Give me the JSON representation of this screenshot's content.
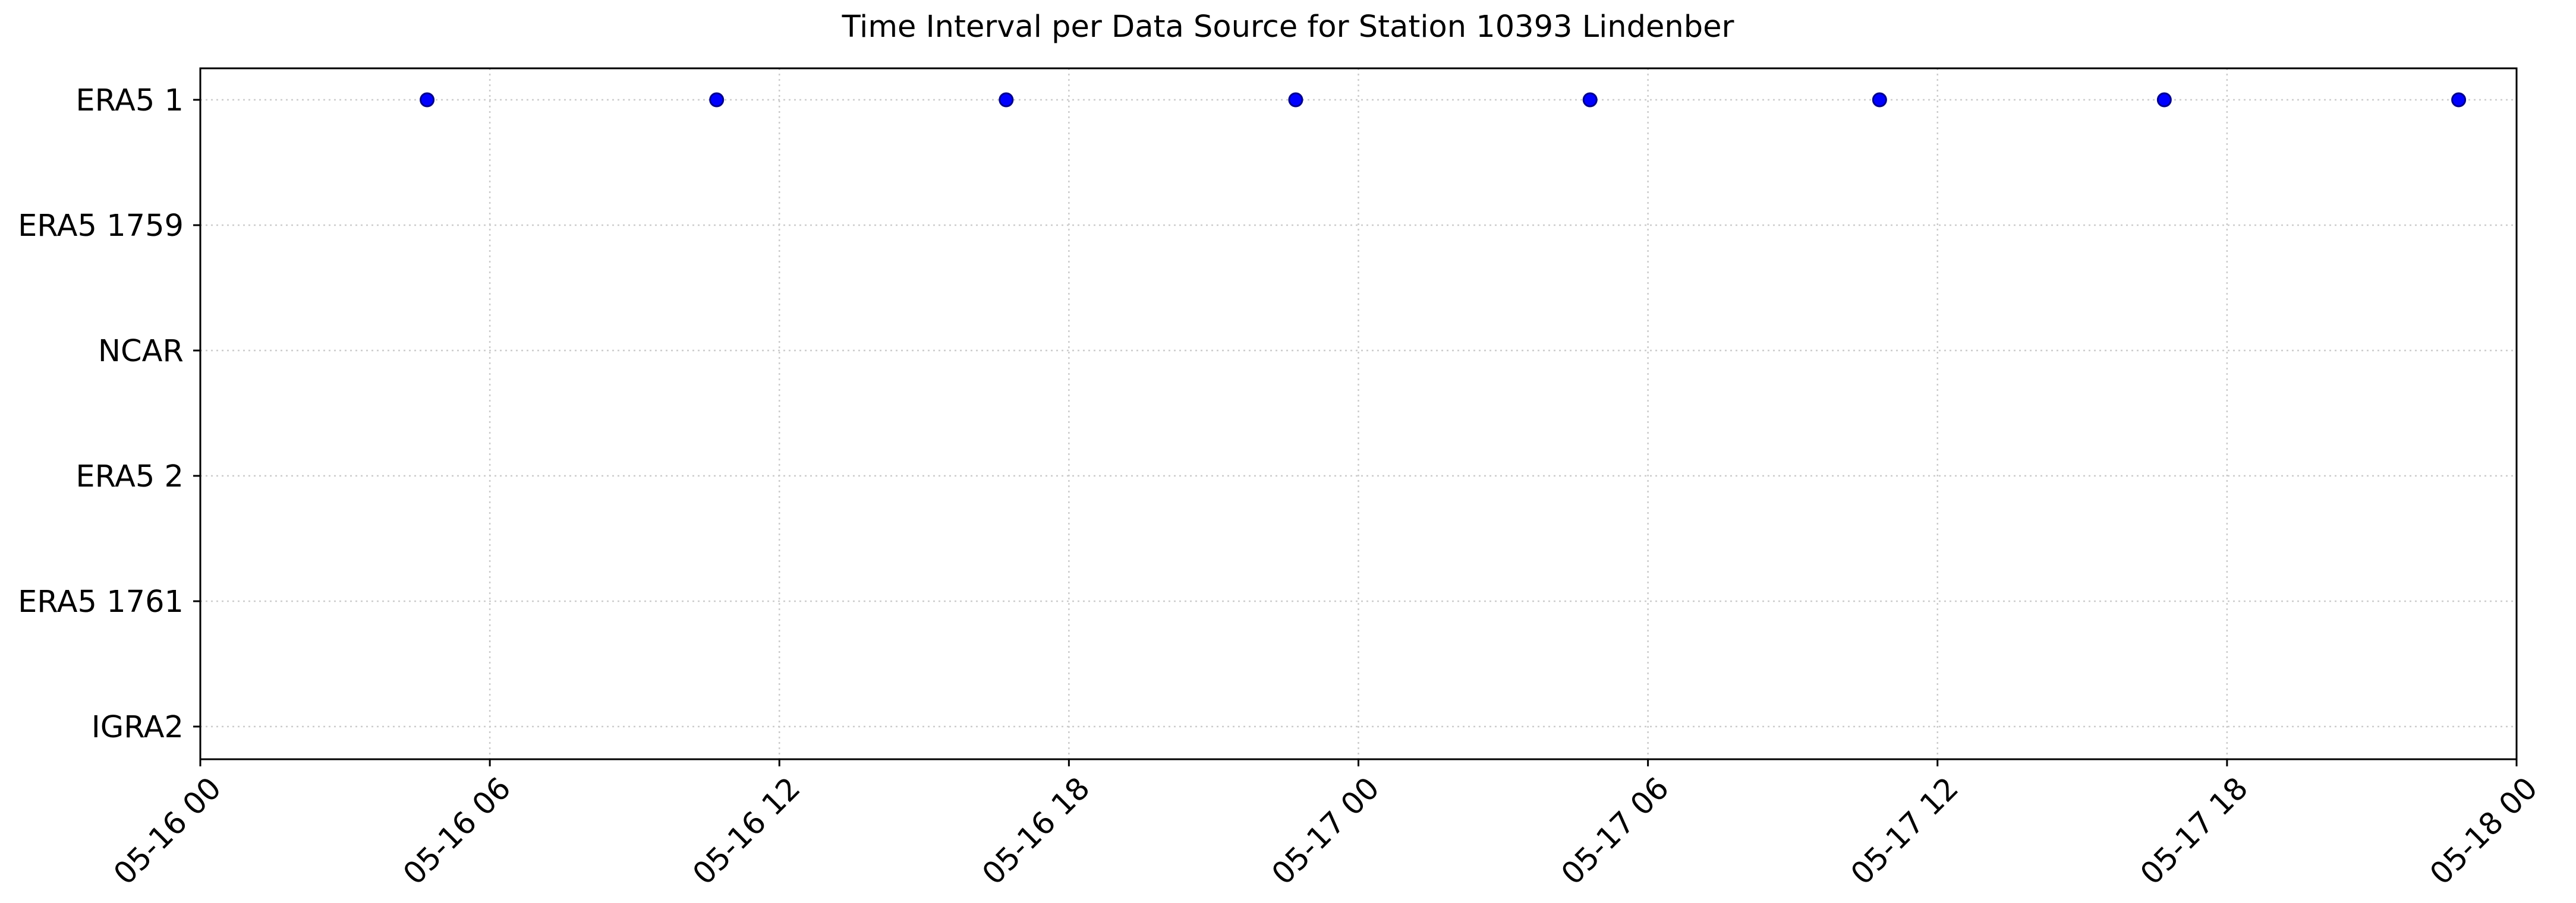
{
  "chart_data": {
    "type": "scatter",
    "title": "Time Interval per Data Source for Station 10393 Lindenber",
    "xlabel": "",
    "ylabel": "",
    "categories": [
      "ERA5 1",
      "ERA5 1759",
      "NCAR",
      "ERA5 2",
      "ERA5 1761",
      "IGRA2"
    ],
    "x_tick_labels": [
      "05-16 00",
      "05-16 06",
      "05-16 12",
      "05-16 18",
      "05-17 00",
      "05-17 06",
      "05-17 12",
      "05-17 18",
      "05-18 00"
    ],
    "x_range_hours": [
      0,
      48
    ],
    "grid": true,
    "series": [
      {
        "name": "ERA5 1",
        "color": "#0000ff",
        "category": "ERA5 1",
        "x_hours_from_05-16_00": [
          4.7,
          10.7,
          16.7,
          22.7,
          28.8,
          34.8,
          40.7,
          46.8
        ]
      }
    ]
  }
}
